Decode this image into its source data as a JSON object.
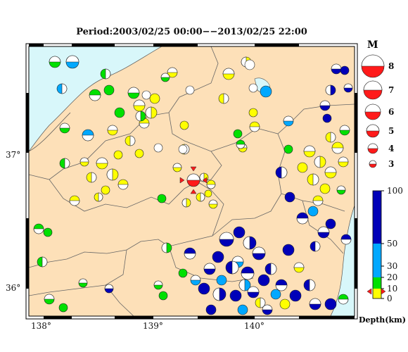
{
  "title": "Period:2003/02/25 00:00−−2013/02/25 22:00",
  "latitude_labels": [
    "37°",
    "36°"
  ],
  "longitude_labels": [
    "138°",
    "139°",
    "140°"
  ],
  "magnitude_legend": {
    "title": "M",
    "values": [
      "8",
      "7",
      "6",
      "5",
      "4",
      "3"
    ]
  },
  "depth_scale": {
    "title": "Depth(km)",
    "ticks": [
      "100",
      "50",
      "30",
      "20",
      "10",
      "0"
    ],
    "colors": {
      "deep": "#0000b8",
      "mid": "#00a8ff",
      "shallow": "#00e000",
      "surface": "#ffff00"
    }
  },
  "colors": {
    "land": "#fde0b8",
    "sea": "#d8f7fa",
    "epicenter": "#ff1a1a"
  }
}
